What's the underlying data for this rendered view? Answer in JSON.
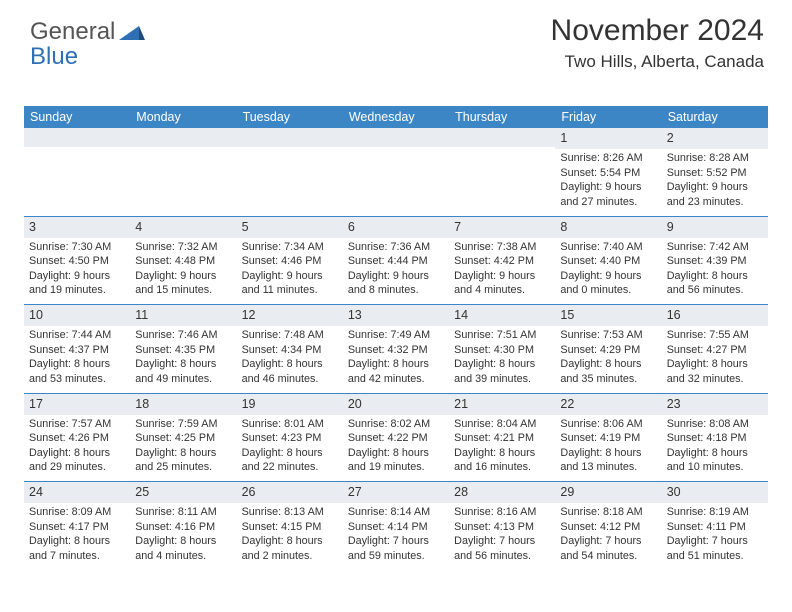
{
  "brand": {
    "word1": "General",
    "word2": "Blue"
  },
  "header": {
    "month_title": "November 2024",
    "location": "Two Hills, Alberta, Canada"
  },
  "colors": {
    "accent": "#3d86c6",
    "daynum_bg": "#e9edf1",
    "text": "#333333",
    "bg": "#ffffff"
  },
  "weekdays": [
    "Sunday",
    "Monday",
    "Tuesday",
    "Wednesday",
    "Thursday",
    "Friday",
    "Saturday"
  ],
  "weeks": [
    [
      {
        "day": ""
      },
      {
        "day": ""
      },
      {
        "day": ""
      },
      {
        "day": ""
      },
      {
        "day": ""
      },
      {
        "day": "1",
        "sunrise": "Sunrise: 8:26 AM",
        "sunset": "Sunset: 5:54 PM",
        "daylight": "Daylight: 9 hours and 27 minutes."
      },
      {
        "day": "2",
        "sunrise": "Sunrise: 8:28 AM",
        "sunset": "Sunset: 5:52 PM",
        "daylight": "Daylight: 9 hours and 23 minutes."
      }
    ],
    [
      {
        "day": "3",
        "sunrise": "Sunrise: 7:30 AM",
        "sunset": "Sunset: 4:50 PM",
        "daylight": "Daylight: 9 hours and 19 minutes."
      },
      {
        "day": "4",
        "sunrise": "Sunrise: 7:32 AM",
        "sunset": "Sunset: 4:48 PM",
        "daylight": "Daylight: 9 hours and 15 minutes."
      },
      {
        "day": "5",
        "sunrise": "Sunrise: 7:34 AM",
        "sunset": "Sunset: 4:46 PM",
        "daylight": "Daylight: 9 hours and 11 minutes."
      },
      {
        "day": "6",
        "sunrise": "Sunrise: 7:36 AM",
        "sunset": "Sunset: 4:44 PM",
        "daylight": "Daylight: 9 hours and 8 minutes."
      },
      {
        "day": "7",
        "sunrise": "Sunrise: 7:38 AM",
        "sunset": "Sunset: 4:42 PM",
        "daylight": "Daylight: 9 hours and 4 minutes."
      },
      {
        "day": "8",
        "sunrise": "Sunrise: 7:40 AM",
        "sunset": "Sunset: 4:40 PM",
        "daylight": "Daylight: 9 hours and 0 minutes."
      },
      {
        "day": "9",
        "sunrise": "Sunrise: 7:42 AM",
        "sunset": "Sunset: 4:39 PM",
        "daylight": "Daylight: 8 hours and 56 minutes."
      }
    ],
    [
      {
        "day": "10",
        "sunrise": "Sunrise: 7:44 AM",
        "sunset": "Sunset: 4:37 PM",
        "daylight": "Daylight: 8 hours and 53 minutes."
      },
      {
        "day": "11",
        "sunrise": "Sunrise: 7:46 AM",
        "sunset": "Sunset: 4:35 PM",
        "daylight": "Daylight: 8 hours and 49 minutes."
      },
      {
        "day": "12",
        "sunrise": "Sunrise: 7:48 AM",
        "sunset": "Sunset: 4:34 PM",
        "daylight": "Daylight: 8 hours and 46 minutes."
      },
      {
        "day": "13",
        "sunrise": "Sunrise: 7:49 AM",
        "sunset": "Sunset: 4:32 PM",
        "daylight": "Daylight: 8 hours and 42 minutes."
      },
      {
        "day": "14",
        "sunrise": "Sunrise: 7:51 AM",
        "sunset": "Sunset: 4:30 PM",
        "daylight": "Daylight: 8 hours and 39 minutes."
      },
      {
        "day": "15",
        "sunrise": "Sunrise: 7:53 AM",
        "sunset": "Sunset: 4:29 PM",
        "daylight": "Daylight: 8 hours and 35 minutes."
      },
      {
        "day": "16",
        "sunrise": "Sunrise: 7:55 AM",
        "sunset": "Sunset: 4:27 PM",
        "daylight": "Daylight: 8 hours and 32 minutes."
      }
    ],
    [
      {
        "day": "17",
        "sunrise": "Sunrise: 7:57 AM",
        "sunset": "Sunset: 4:26 PM",
        "daylight": "Daylight: 8 hours and 29 minutes."
      },
      {
        "day": "18",
        "sunrise": "Sunrise: 7:59 AM",
        "sunset": "Sunset: 4:25 PM",
        "daylight": "Daylight: 8 hours and 25 minutes."
      },
      {
        "day": "19",
        "sunrise": "Sunrise: 8:01 AM",
        "sunset": "Sunset: 4:23 PM",
        "daylight": "Daylight: 8 hours and 22 minutes."
      },
      {
        "day": "20",
        "sunrise": "Sunrise: 8:02 AM",
        "sunset": "Sunset: 4:22 PM",
        "daylight": "Daylight: 8 hours and 19 minutes."
      },
      {
        "day": "21",
        "sunrise": "Sunrise: 8:04 AM",
        "sunset": "Sunset: 4:21 PM",
        "daylight": "Daylight: 8 hours and 16 minutes."
      },
      {
        "day": "22",
        "sunrise": "Sunrise: 8:06 AM",
        "sunset": "Sunset: 4:19 PM",
        "daylight": "Daylight: 8 hours and 13 minutes."
      },
      {
        "day": "23",
        "sunrise": "Sunrise: 8:08 AM",
        "sunset": "Sunset: 4:18 PM",
        "daylight": "Daylight: 8 hours and 10 minutes."
      }
    ],
    [
      {
        "day": "24",
        "sunrise": "Sunrise: 8:09 AM",
        "sunset": "Sunset: 4:17 PM",
        "daylight": "Daylight: 8 hours and 7 minutes."
      },
      {
        "day": "25",
        "sunrise": "Sunrise: 8:11 AM",
        "sunset": "Sunset: 4:16 PM",
        "daylight": "Daylight: 8 hours and 4 minutes."
      },
      {
        "day": "26",
        "sunrise": "Sunrise: 8:13 AM",
        "sunset": "Sunset: 4:15 PM",
        "daylight": "Daylight: 8 hours and 2 minutes."
      },
      {
        "day": "27",
        "sunrise": "Sunrise: 8:14 AM",
        "sunset": "Sunset: 4:14 PM",
        "daylight": "Daylight: 7 hours and 59 minutes."
      },
      {
        "day": "28",
        "sunrise": "Sunrise: 8:16 AM",
        "sunset": "Sunset: 4:13 PM",
        "daylight": "Daylight: 7 hours and 56 minutes."
      },
      {
        "day": "29",
        "sunrise": "Sunrise: 8:18 AM",
        "sunset": "Sunset: 4:12 PM",
        "daylight": "Daylight: 7 hours and 54 minutes."
      },
      {
        "day": "30",
        "sunrise": "Sunrise: 8:19 AM",
        "sunset": "Sunset: 4:11 PM",
        "daylight": "Daylight: 7 hours and 51 minutes."
      }
    ]
  ]
}
